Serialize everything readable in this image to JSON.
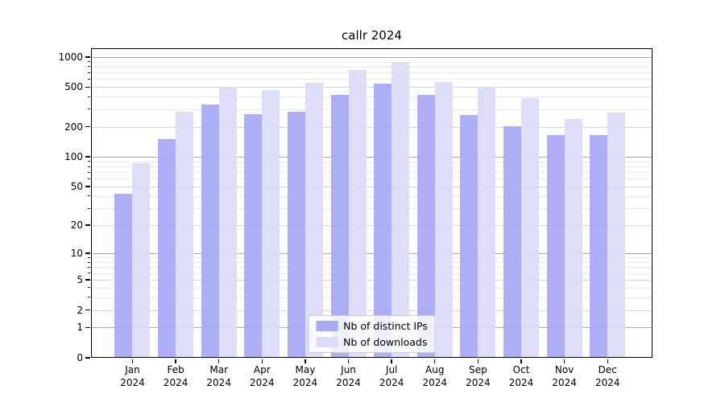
{
  "title": "callr 2024",
  "chart_data": {
    "type": "bar",
    "title": "callr 2024",
    "xlabel": "",
    "ylabel": "",
    "categories": [
      "Jan",
      "Feb",
      "Mar",
      "Apr",
      "May",
      "Jun",
      "Jul",
      "Aug",
      "Sep",
      "Oct",
      "Nov",
      "Dec"
    ],
    "category_year": "2024",
    "series": [
      {
        "name": "Nb of distinct IPs",
        "color": "#a9a9f7",
        "values": [
          42,
          150,
          336,
          267,
          283,
          420,
          544,
          420,
          264,
          203,
          164,
          164
        ]
      },
      {
        "name": "Nb of downloads",
        "color": "#dcdcf9",
        "values": [
          86,
          286,
          505,
          469,
          555,
          737,
          870,
          562,
          505,
          390,
          241,
          278
        ]
      }
    ],
    "yscale": "symlog",
    "ylim": [
      0,
      1222
    ],
    "yticks": [
      0,
      1,
      2,
      5,
      10,
      20,
      50,
      100,
      200,
      500,
      1000
    ],
    "minor_yticks": [
      3,
      4,
      6,
      7,
      8,
      9,
      30,
      40,
      60,
      70,
      80,
      90,
      300,
      400,
      600,
      700,
      800,
      900
    ],
    "grid": true,
    "legend_position": "lower center"
  }
}
